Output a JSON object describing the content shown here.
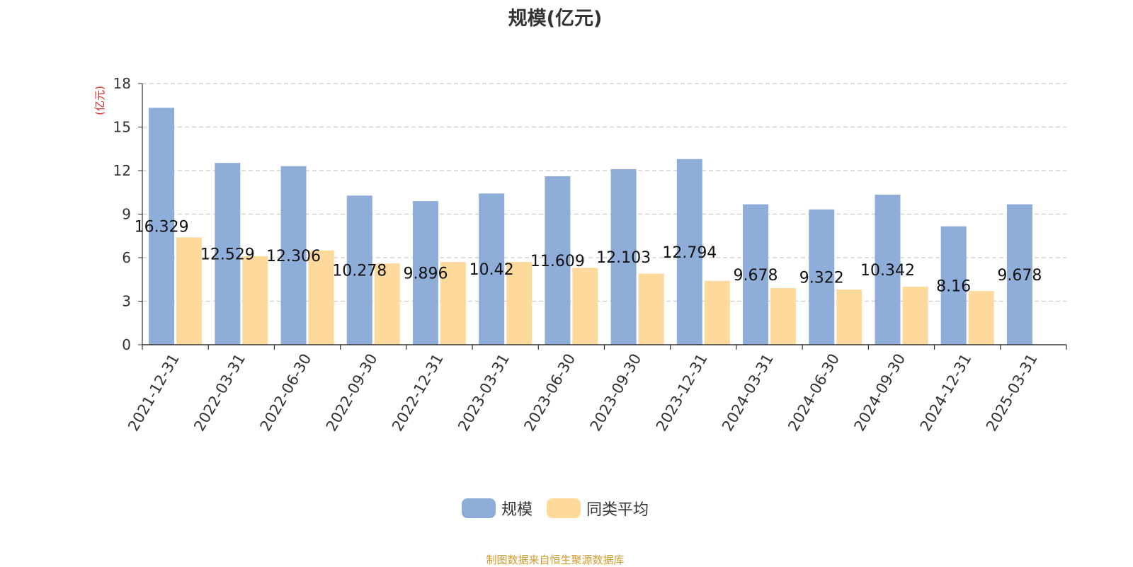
{
  "chart_data": {
    "type": "bar",
    "title": "规模(亿元)",
    "ylabel": "(亿元)",
    "ylim": [
      0,
      18
    ],
    "yticks": [
      0,
      3,
      6,
      9,
      12,
      15,
      18
    ],
    "grid": true,
    "legend_position": "bottom-center",
    "categories": [
      "2021-12-31",
      "2022-03-31",
      "2022-06-30",
      "2022-09-30",
      "2022-12-31",
      "2023-03-31",
      "2023-06-30",
      "2023-09-30",
      "2023-12-31",
      "2024-03-31",
      "2024-06-30",
      "2024-09-30",
      "2024-12-31",
      "2025-03-31"
    ],
    "series": [
      {
        "name": "规模",
        "color": "#8eadd9",
        "values": [
          16.329,
          12.529,
          12.306,
          10.278,
          9.896,
          10.42,
          11.609,
          12.103,
          12.794,
          9.678,
          9.322,
          10.342,
          8.16,
          9.678
        ],
        "labels": [
          "16.329",
          "12.529",
          "12.306",
          "10.278",
          "9.896",
          "10.42",
          "11.609",
          "12.103",
          "12.794",
          "9.678",
          "9.322",
          "10.342",
          "8.16",
          "9.678"
        ]
      },
      {
        "name": "同类平均",
        "color": "#fdd99b",
        "values": [
          7.4,
          6.1,
          6.5,
          5.6,
          5.7,
          5.7,
          5.3,
          4.9,
          4.4,
          3.9,
          3.8,
          4.0,
          3.7,
          null
        ]
      }
    ]
  },
  "footer": "制图数据来自恒生聚源数据库"
}
